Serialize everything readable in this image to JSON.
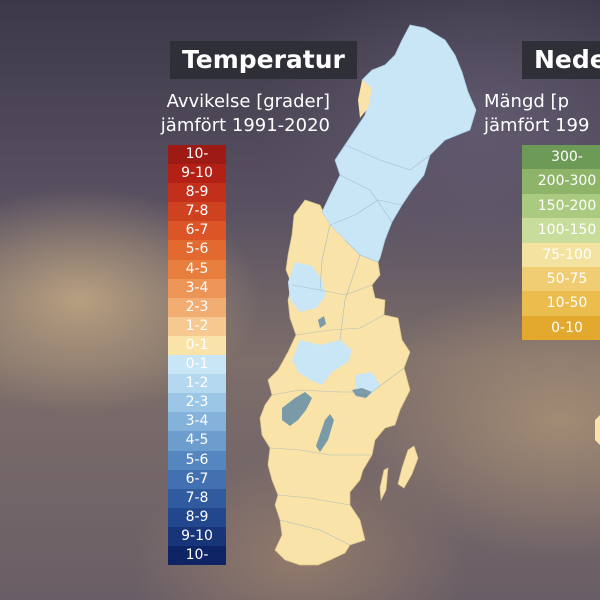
{
  "temperature": {
    "title": "Temperatur",
    "subtitle_line1": "Avvikelse [grader]",
    "subtitle_line2": "jämfört 1991-2020",
    "legend": [
      {
        "label": "10-",
        "color": "#9e1a14"
      },
      {
        "label": "9-10",
        "color": "#b32116"
      },
      {
        "label": "8-9",
        "color": "#c2301b"
      },
      {
        "label": "7-8",
        "color": "#cf4220"
      },
      {
        "label": "6-7",
        "color": "#db5527"
      },
      {
        "label": "5-6",
        "color": "#e2692f"
      },
      {
        "label": "4-5",
        "color": "#e77e3d"
      },
      {
        "label": "3-4",
        "color": "#ec9556"
      },
      {
        "label": "2-3",
        "color": "#f1ad72"
      },
      {
        "label": "1-2",
        "color": "#f5c98f"
      },
      {
        "label": "0-1",
        "color": "#f9e3a8"
      },
      {
        "label": "0-1",
        "color": "#c9e6f7"
      },
      {
        "label": "1-2",
        "color": "#b4d8f0"
      },
      {
        "label": "2-3",
        "color": "#9cc6e6"
      },
      {
        "label": "3-4",
        "color": "#84b2da"
      },
      {
        "label": "4-5",
        "color": "#6d9dcd"
      },
      {
        "label": "5-6",
        "color": "#5686bf"
      },
      {
        "label": "6-7",
        "color": "#4270b0"
      },
      {
        "label": "7-8",
        "color": "#305b9f"
      },
      {
        "label": "8-9",
        "color": "#22478c"
      },
      {
        "label": "9-10",
        "color": "#173578"
      },
      {
        "label": "10-",
        "color": "#0e2464"
      }
    ]
  },
  "precipitation": {
    "title": "Nede",
    "subtitle_line1": "Mängd [p",
    "subtitle_line2": "jämfört 199",
    "legend": [
      {
        "label": "300-",
        "color": "#6e9a57"
      },
      {
        "label": "200-300",
        "color": "#8eb469"
      },
      {
        "label": "150-200",
        "color": "#aacb7f"
      },
      {
        "label": "100-150",
        "color": "#c8dc9c"
      },
      {
        "label": "75-100",
        "color": "#f4e2a0"
      },
      {
        "label": "50-75",
        "color": "#f0cd73"
      },
      {
        "label": "10-50",
        "color": "#ebbd4d"
      },
      {
        "label": "0-10",
        "color": "#e3a92e"
      }
    ]
  },
  "map": {
    "colors": {
      "north_region": "#c9e6f7",
      "south_region": "#f9e3a8",
      "lake": "#7a9aa8",
      "border": "#9ab4c4"
    }
  }
}
